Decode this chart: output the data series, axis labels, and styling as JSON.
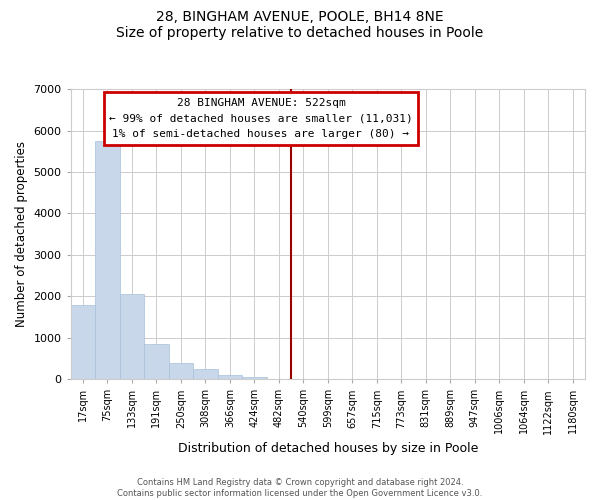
{
  "title": "28, BINGHAM AVENUE, POOLE, BH14 8NE",
  "subtitle": "Size of property relative to detached houses in Poole",
  "xlabel": "Distribution of detached houses by size in Poole",
  "ylabel": "Number of detached properties",
  "bar_labels": [
    "17sqm",
    "75sqm",
    "133sqm",
    "191sqm",
    "250sqm",
    "308sqm",
    "366sqm",
    "424sqm",
    "482sqm",
    "540sqm",
    "599sqm",
    "657sqm",
    "715sqm",
    "773sqm",
    "831sqm",
    "889sqm",
    "947sqm",
    "1006sqm",
    "1064sqm",
    "1122sqm",
    "1180sqm"
  ],
  "bar_values": [
    1780,
    5750,
    2060,
    840,
    380,
    240,
    100,
    55,
    15,
    5,
    2,
    1,
    0,
    0,
    0,
    0,
    0,
    0,
    0,
    0,
    0
  ],
  "bar_color": "#c8d8ea",
  "bar_edge_color": "#a8c0d8",
  "vline_x_index": 9,
  "vline_color": "#990000",
  "annotation_title": "28 BINGHAM AVENUE: 522sqm",
  "annotation_line1": "← 99% of detached houses are smaller (11,031)",
  "annotation_line2": "1% of semi-detached houses are larger (80) →",
  "annotation_box_color": "white",
  "annotation_box_edge": "#cc0000",
  "ylim": [
    0,
    7000
  ],
  "yticks": [
    0,
    1000,
    2000,
    3000,
    4000,
    5000,
    6000,
    7000
  ],
  "footer1": "Contains HM Land Registry data © Crown copyright and database right 2024.",
  "footer2": "Contains public sector information licensed under the Open Government Licence v3.0.",
  "bg_color": "#ffffff",
  "plot_bg_color": "#ffffff",
  "grid_color": "#cccccc",
  "title_fontsize": 11,
  "subtitle_fontsize": 9
}
